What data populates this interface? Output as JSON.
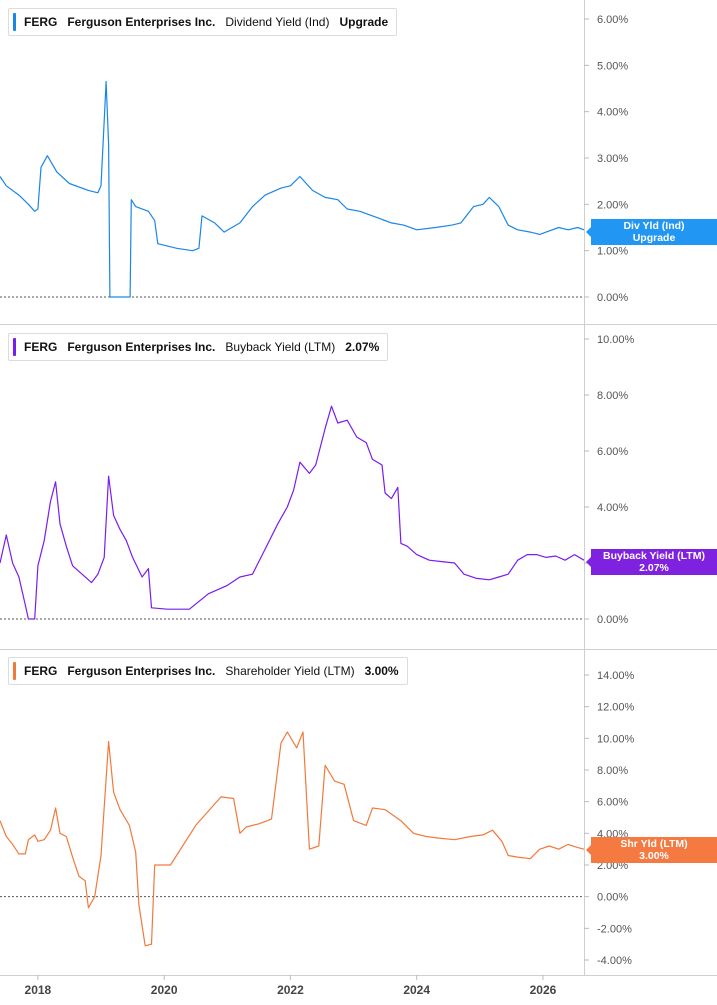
{
  "colors": {
    "dividend": "#1a86e8",
    "buyback": "#7a1cf0",
    "shareholder": "#f07a3c",
    "grid": "#dddddd",
    "axis_text": "#555555",
    "tag_dividend": "#2196f3",
    "tag_buyback": "#7f22e0",
    "tag_shareholder": "#f47a42"
  },
  "panels": [
    {
      "ticker": "FERG",
      "company": "Ferguson Enterprises Inc.",
      "metric": "Dividend Yield (Ind)",
      "value": "Upgrade",
      "tag_line1": "Div Yld (Ind)",
      "tag_line2": "Upgrade"
    },
    {
      "ticker": "FERG",
      "company": "Ferguson Enterprises Inc.",
      "metric": "Buyback Yield (LTM)",
      "value": "2.07%",
      "tag_line1": "Buyback Yield (LTM)",
      "tag_line2": "2.07%"
    },
    {
      "ticker": "FERG",
      "company": "Ferguson Enterprises Inc.",
      "metric": "Shareholder Yield (LTM)",
      "value": "3.00%",
      "tag_line1": "Shr Yld (LTM)",
      "tag_line2": "3.00%"
    }
  ],
  "chart_data": [
    {
      "type": "line",
      "title": "Dividend Yield (Ind)",
      "series": [
        {
          "name": "Dividend Yield (Ind)",
          "unit": "%",
          "points": [
            [
              2017.4,
              2.6
            ],
            [
              2017.5,
              2.4
            ],
            [
              2017.7,
              2.2
            ],
            [
              2017.85,
              2.0
            ],
            [
              2017.95,
              1.85
            ],
            [
              2018.0,
              1.9
            ],
            [
              2018.05,
              2.8
            ],
            [
              2018.15,
              3.05
            ],
            [
              2018.3,
              2.7
            ],
            [
              2018.5,
              2.45
            ],
            [
              2018.8,
              2.3
            ],
            [
              2018.95,
              2.25
            ],
            [
              2019.0,
              2.4
            ],
            [
              2019.05,
              3.8
            ],
            [
              2019.08,
              4.65
            ],
            [
              2019.12,
              3.3
            ],
            [
              2019.14,
              0.0
            ],
            [
              2019.46,
              0.0
            ],
            [
              2019.48,
              2.1
            ],
            [
              2019.55,
              1.95
            ],
            [
              2019.75,
              1.85
            ],
            [
              2019.85,
              1.65
            ],
            [
              2019.9,
              1.15
            ],
            [
              2020.2,
              1.05
            ],
            [
              2020.45,
              1.0
            ],
            [
              2020.55,
              1.05
            ],
            [
              2020.6,
              1.75
            ],
            [
              2020.8,
              1.6
            ],
            [
              2020.95,
              1.4
            ],
            [
              2021.2,
              1.6
            ],
            [
              2021.4,
              1.95
            ],
            [
              2021.6,
              2.2
            ],
            [
              2021.85,
              2.35
            ],
            [
              2022.0,
              2.4
            ],
            [
              2022.15,
              2.6
            ],
            [
              2022.35,
              2.3
            ],
            [
              2022.55,
              2.15
            ],
            [
              2022.75,
              2.1
            ],
            [
              2022.9,
              1.9
            ],
            [
              2023.1,
              1.85
            ],
            [
              2023.3,
              1.75
            ],
            [
              2023.6,
              1.6
            ],
            [
              2023.8,
              1.55
            ],
            [
              2024.0,
              1.45
            ],
            [
              2024.3,
              1.5
            ],
            [
              2024.55,
              1.55
            ],
            [
              2024.7,
              1.6
            ],
            [
              2024.9,
              1.95
            ],
            [
              2025.05,
              2.0
            ],
            [
              2025.15,
              2.15
            ],
            [
              2025.3,
              1.95
            ],
            [
              2025.45,
              1.55
            ],
            [
              2025.6,
              1.45
            ],
            [
              2025.8,
              1.4
            ],
            [
              2025.95,
              1.35
            ],
            [
              2026.05,
              1.4
            ],
            [
              2026.25,
              1.5
            ],
            [
              2026.4,
              1.45
            ],
            [
              2026.55,
              1.5
            ],
            [
              2026.65,
              1.45
            ]
          ]
        }
      ],
      "ylim": [
        0,
        6
      ],
      "yticks": [
        0,
        1,
        2,
        3,
        4,
        5,
        6
      ],
      "ytick_labels": [
        "0.00%",
        "1.00%",
        "2.00%",
        "3.00%",
        "4.00%",
        "5.00%",
        "6.00%"
      ]
    },
    {
      "type": "line",
      "title": "Buyback Yield (LTM)",
      "series": [
        {
          "name": "Buyback Yield (LTM)",
          "unit": "%",
          "points": [
            [
              2017.4,
              2.0
            ],
            [
              2017.5,
              3.0
            ],
            [
              2017.6,
              2.0
            ],
            [
              2017.7,
              1.5
            ],
            [
              2017.8,
              0.5
            ],
            [
              2017.85,
              0.0
            ],
            [
              2017.95,
              0.0
            ],
            [
              2018.0,
              1.9
            ],
            [
              2018.1,
              2.8
            ],
            [
              2018.2,
              4.2
            ],
            [
              2018.28,
              4.9
            ],
            [
              2018.35,
              3.4
            ],
            [
              2018.45,
              2.6
            ],
            [
              2018.55,
              1.9
            ],
            [
              2018.7,
              1.6
            ],
            [
              2018.85,
              1.3
            ],
            [
              2018.95,
              1.6
            ],
            [
              2019.05,
              2.2
            ],
            [
              2019.12,
              5.1
            ],
            [
              2019.2,
              3.7
            ],
            [
              2019.3,
              3.2
            ],
            [
              2019.4,
              2.8
            ],
            [
              2019.5,
              2.2
            ],
            [
              2019.65,
              1.5
            ],
            [
              2019.75,
              1.8
            ],
            [
              2019.8,
              0.4
            ],
            [
              2020.05,
              0.35
            ],
            [
              2020.4,
              0.35
            ],
            [
              2020.7,
              0.9
            ],
            [
              2021.0,
              1.2
            ],
            [
              2021.2,
              1.5
            ],
            [
              2021.4,
              1.6
            ],
            [
              2021.6,
              2.5
            ],
            [
              2021.8,
              3.4
            ],
            [
              2021.95,
              4.0
            ],
            [
              2022.05,
              4.6
            ],
            [
              2022.15,
              5.6
            ],
            [
              2022.3,
              5.2
            ],
            [
              2022.4,
              5.5
            ],
            [
              2022.55,
              6.8
            ],
            [
              2022.65,
              7.6
            ],
            [
              2022.75,
              7.0
            ],
            [
              2022.9,
              7.1
            ],
            [
              2023.05,
              6.5
            ],
            [
              2023.2,
              6.3
            ],
            [
              2023.3,
              5.7
            ],
            [
              2023.45,
              5.5
            ],
            [
              2023.5,
              4.5
            ],
            [
              2023.6,
              4.3
            ],
            [
              2023.7,
              4.7
            ],
            [
              2023.75,
              2.7
            ],
            [
              2023.85,
              2.6
            ],
            [
              2024.0,
              2.3
            ],
            [
              2024.2,
              2.1
            ],
            [
              2024.4,
              2.05
            ],
            [
              2024.6,
              2.0
            ],
            [
              2024.75,
              1.6
            ],
            [
              2024.95,
              1.45
            ],
            [
              2025.15,
              1.4
            ],
            [
              2025.3,
              1.5
            ],
            [
              2025.45,
              1.6
            ],
            [
              2025.6,
              2.1
            ],
            [
              2025.75,
              2.3
            ],
            [
              2025.9,
              2.3
            ],
            [
              2026.05,
              2.2
            ],
            [
              2026.2,
              2.25
            ],
            [
              2026.35,
              2.1
            ],
            [
              2026.5,
              2.3
            ],
            [
              2026.65,
              2.1
            ]
          ]
        }
      ],
      "ylim": [
        0,
        10
      ],
      "yticks": [
        0,
        2,
        4,
        6,
        8,
        10
      ],
      "ytick_labels": [
        "0.00%",
        "",
        "4.00%",
        "6.00%",
        "8.00%",
        "10.00%"
      ]
    },
    {
      "type": "line",
      "title": "Shareholder Yield (LTM)",
      "series": [
        {
          "name": "Shareholder Yield (LTM)",
          "unit": "%",
          "points": [
            [
              2017.4,
              4.8
            ],
            [
              2017.5,
              3.8
            ],
            [
              2017.6,
              3.3
            ],
            [
              2017.7,
              2.7
            ],
            [
              2017.8,
              2.7
            ],
            [
              2017.85,
              3.6
            ],
            [
              2017.95,
              3.9
            ],
            [
              2018.0,
              3.5
            ],
            [
              2018.1,
              3.6
            ],
            [
              2018.2,
              4.2
            ],
            [
              2018.28,
              5.6
            ],
            [
              2018.35,
              4.0
            ],
            [
              2018.45,
              3.8
            ],
            [
              2018.55,
              2.5
            ],
            [
              2018.65,
              1.3
            ],
            [
              2018.75,
              1.0
            ],
            [
              2018.8,
              -0.7
            ],
            [
              2018.9,
              0.0
            ],
            [
              2019.0,
              2.6
            ],
            [
              2019.12,
              9.8
            ],
            [
              2019.2,
              6.6
            ],
            [
              2019.3,
              5.5
            ],
            [
              2019.45,
              4.5
            ],
            [
              2019.55,
              2.8
            ],
            [
              2019.6,
              -0.5
            ],
            [
              2019.7,
              -3.1
            ],
            [
              2019.8,
              -3.0
            ],
            [
              2019.85,
              2.0
            ],
            [
              2020.1,
              2.0
            ],
            [
              2020.5,
              4.5
            ],
            [
              2020.9,
              6.3
            ],
            [
              2021.1,
              6.2
            ],
            [
              2021.2,
              4.0
            ],
            [
              2021.3,
              4.4
            ],
            [
              2021.5,
              4.6
            ],
            [
              2021.7,
              4.9
            ],
            [
              2021.85,
              9.7
            ],
            [
              2021.95,
              10.4
            ],
            [
              2022.1,
              9.4
            ],
            [
              2022.2,
              10.4
            ],
            [
              2022.3,
              3.0
            ],
            [
              2022.45,
              3.2
            ],
            [
              2022.55,
              8.3
            ],
            [
              2022.7,
              7.3
            ],
            [
              2022.85,
              7.1
            ],
            [
              2023.0,
              4.8
            ],
            [
              2023.2,
              4.5
            ],
            [
              2023.3,
              5.6
            ],
            [
              2023.5,
              5.5
            ],
            [
              2023.75,
              4.8
            ],
            [
              2023.95,
              4.0
            ],
            [
              2024.15,
              3.8
            ],
            [
              2024.35,
              3.7
            ],
            [
              2024.6,
              3.6
            ],
            [
              2024.85,
              3.8
            ],
            [
              2025.05,
              3.9
            ],
            [
              2025.2,
              4.2
            ],
            [
              2025.35,
              3.5
            ],
            [
              2025.45,
              2.6
            ],
            [
              2025.6,
              2.5
            ],
            [
              2025.8,
              2.4
            ],
            [
              2025.95,
              3.0
            ],
            [
              2026.1,
              3.2
            ],
            [
              2026.25,
              3.0
            ],
            [
              2026.4,
              3.3
            ],
            [
              2026.55,
              3.1
            ],
            [
              2026.65,
              3.0
            ]
          ]
        }
      ],
      "ylim": [
        -4,
        14
      ],
      "yticks": [
        -4,
        -2,
        0,
        2,
        4,
        6,
        8,
        10,
        12,
        14
      ],
      "ytick_labels": [
        "-4.00%",
        "-2.00%",
        "0.00%",
        "2.00%",
        "4.00%",
        "6.00%",
        "8.00%",
        "10.00%",
        "12.00%",
        "14.00%"
      ]
    }
  ],
  "x_axis": {
    "ticks": [
      2018,
      2020,
      2022,
      2024,
      2026
    ],
    "labels": [
      "2018",
      "2020",
      "2022",
      "2024",
      "2026"
    ],
    "xlim": [
      2017.4,
      2026.65
    ]
  }
}
